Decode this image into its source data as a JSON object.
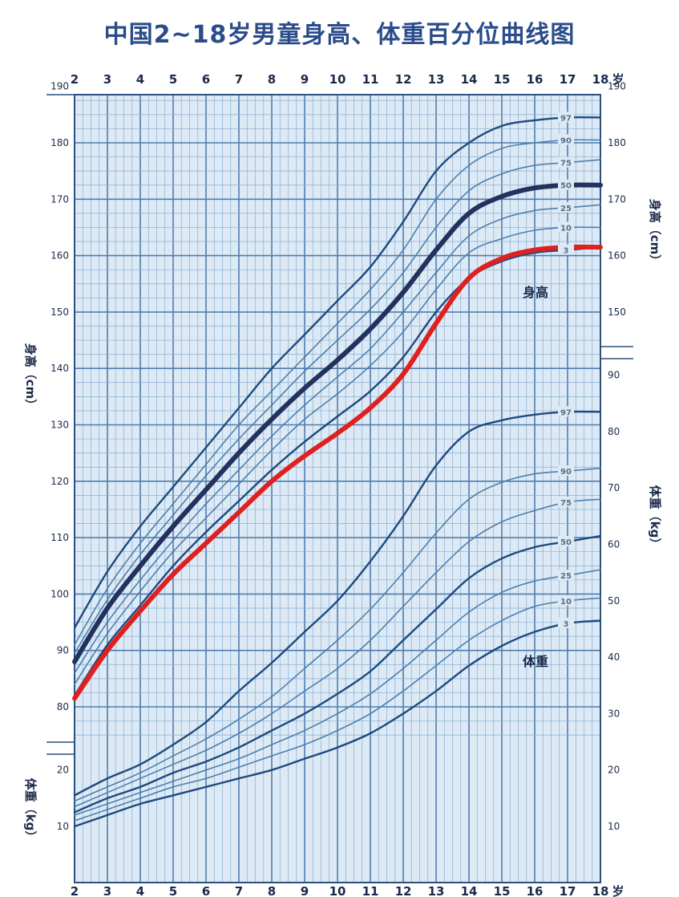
{
  "title": "中国2~18岁男童身高、体重百分位曲线图",
  "chart_data": [
    {
      "type": "line",
      "name": "身高",
      "curve_label": "身高",
      "axis_label_left": "身高（cm）",
      "axis_label_right": "身高（cm）",
      "x_unit": "岁",
      "x_ticks": [
        2,
        3,
        4,
        5,
        6,
        7,
        8,
        9,
        10,
        11,
        12,
        13,
        14,
        15,
        16,
        17,
        18
      ],
      "y_ticks_left": [
        80,
        90,
        100,
        110,
        120,
        130,
        140,
        150,
        160,
        170,
        180,
        190
      ],
      "y_ticks_right": [
        150,
        160,
        170,
        180,
        190
      ],
      "xlim": [
        2,
        18
      ],
      "ylim": [
        75,
        190
      ],
      "x": [
        2,
        3,
        4,
        5,
        6,
        7,
        8,
        9,
        10,
        11,
        12,
        13,
        14,
        15,
        16,
        17,
        18
      ],
      "series": [
        {
          "name": "97",
          "values": [
            94,
            104,
            112,
            119,
            126,
            133,
            140,
            146,
            152,
            158,
            166,
            175,
            180,
            183,
            184,
            184.5,
            184.5
          ]
        },
        {
          "name": "90",
          "values": [
            91,
            101,
            109,
            116,
            123,
            130,
            136,
            142,
            148,
            154,
            161,
            170,
            176,
            179,
            180,
            180.5,
            180.5
          ]
        },
        {
          "name": "75",
          "values": [
            89.5,
            99,
            107,
            114,
            121,
            127.5,
            133.5,
            139.5,
            145,
            150.5,
            157,
            165,
            171.5,
            174.5,
            176,
            176.5,
            177
          ]
        },
        {
          "name": "50",
          "values": [
            88,
            97.5,
            105,
            112,
            118.5,
            125,
            131,
            136.5,
            141.5,
            147,
            153.5,
            161,
            167.5,
            170.5,
            172,
            172.5,
            172.5
          ]
        },
        {
          "name": "25",
          "values": [
            86,
            95,
            102.5,
            109.5,
            116,
            122,
            128,
            133.5,
            138.5,
            143.5,
            150,
            157,
            163.5,
            166.5,
            168,
            168.5,
            169
          ]
        },
        {
          "name": "10",
          "values": [
            84,
            93,
            100.5,
            107.5,
            113.5,
            119.5,
            125.5,
            131,
            135.5,
            140.5,
            146.5,
            154,
            160.5,
            163,
            164.5,
            165,
            165
          ]
        },
        {
          "name": "3",
          "values": [
            82,
            91,
            98,
            105,
            111,
            116.5,
            122,
            127,
            131.5,
            136,
            142,
            150,
            156,
            159,
            160.5,
            161,
            161.5
          ]
        }
      ]
    },
    {
      "type": "line",
      "name": "体重",
      "curve_label": "体重",
      "axis_label_left": "体重（kg）",
      "axis_label_right": "体重（kg）",
      "x_unit": "岁",
      "x_ticks": [
        2,
        3,
        4,
        5,
        6,
        7,
        8,
        9,
        10,
        11,
        12,
        13,
        14,
        15,
        16,
        17,
        18
      ],
      "y_ticks_left": [
        10,
        20
      ],
      "y_ticks_right": [
        10,
        20,
        30,
        40,
        50,
        60,
        70,
        80,
        90
      ],
      "xlim": [
        2,
        18
      ],
      "ylim": [
        5,
        95
      ],
      "x": [
        2,
        3,
        4,
        5,
        6,
        7,
        8,
        9,
        10,
        11,
        12,
        13,
        14,
        15,
        16,
        17,
        18
      ],
      "series": [
        {
          "name": "97",
          "values": [
            15.5,
            18.5,
            21,
            24.5,
            28.5,
            34,
            39,
            44.5,
            50,
            57,
            65,
            74,
            80,
            82,
            83,
            83.5,
            83.5
          ]
        },
        {
          "name": "90",
          "values": [
            14.5,
            17,
            19.5,
            22.5,
            25.5,
            29,
            33,
            38,
            43,
            48.5,
            55,
            62,
            68,
            71,
            72.5,
            73,
            73.5
          ]
        },
        {
          "name": "75",
          "values": [
            13.5,
            16,
            18.5,
            21,
            23.5,
            26.5,
            30,
            34,
            38,
            43,
            49,
            55,
            60.5,
            64,
            66,
            67.5,
            68
          ]
        },
        {
          "name": "50",
          "values": [
            12.5,
            15,
            17,
            19.5,
            21.5,
            24,
            27,
            30,
            33.5,
            37.5,
            43,
            48.5,
            54,
            57.5,
            59.5,
            60.5,
            61.5
          ]
        },
        {
          "name": "25",
          "values": [
            12,
            14,
            16,
            18,
            20,
            22,
            24.5,
            27,
            30,
            33.5,
            38,
            43,
            48,
            51.5,
            53.5,
            54.5,
            55.5
          ]
        },
        {
          "name": "10",
          "values": [
            11,
            13,
            15,
            17,
            18.5,
            20.5,
            22.5,
            24.5,
            27,
            30,
            34,
            38.5,
            43,
            46.5,
            49,
            50,
            50.5
          ]
        },
        {
          "name": "3",
          "values": [
            10,
            12,
            14,
            15.5,
            17,
            18.5,
            20,
            22,
            24,
            26.5,
            30,
            34,
            38.5,
            42,
            44.5,
            46,
            46.5
          ]
        }
      ]
    }
  ],
  "highlight": {
    "median_height_color": "#22315e",
    "child_height_color": "#e02020",
    "child_height_values": [
      81.5,
      90,
      97,
      103.5,
      109,
      114.5,
      120,
      124.5,
      128.5,
      133,
      139,
      148,
      156,
      159.5,
      161,
      161.5,
      161.5
    ]
  },
  "colors": {
    "grid": "#4f7cae",
    "grid_minor": "#86aed2",
    "background": "#ddeaf5",
    "curve": "#1e4a7e",
    "curve_light": "#4c7fae",
    "title": "#2a4c8a",
    "text": "#1a2a4a"
  }
}
